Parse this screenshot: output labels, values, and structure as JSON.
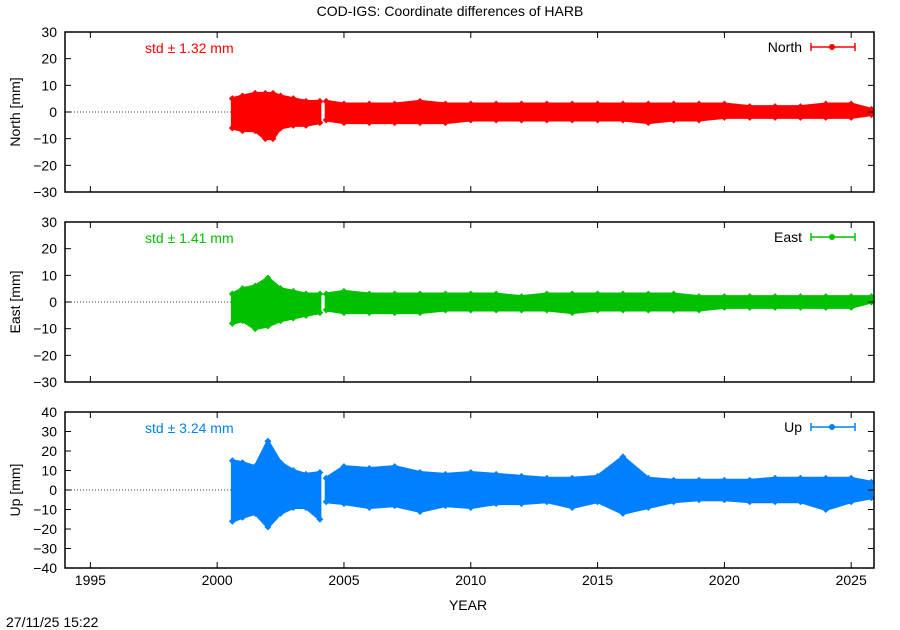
{
  "chart_data": {
    "type": "scatter",
    "title": "COD-IGS: Coordinate differences of HARB",
    "xlabel": "YEAR",
    "xlim": [
      1994.0,
      2025.9
    ],
    "xticks": [
      1995,
      2000,
      2005,
      2010,
      2015,
      2020,
      2025
    ],
    "timestamp": "27/11/25 15:22",
    "grid": false,
    "legend_placement": "top-right",
    "panels": [
      {
        "name": "North",
        "ylabel": "North [mm]",
        "ylim": [
          -30,
          30
        ],
        "yticks": [
          -30,
          -20,
          -10,
          0,
          10,
          20,
          30
        ],
        "color": "#ff0000",
        "std_label": "std ± 1.32 mm",
        "envelope_note_columns": [
          "year",
          "min_mm",
          "max_mm"
        ],
        "segments": [
          [
            [
              2000.6,
              -6,
              5
            ],
            [
              2001.0,
              -7,
              6
            ],
            [
              2001.5,
              -7,
              7
            ],
            [
              2001.9,
              -10,
              7
            ],
            [
              2002.2,
              -10,
              7
            ],
            [
              2002.5,
              -6,
              6
            ],
            [
              2003.0,
              -5,
              5
            ],
            [
              2003.5,
              -5,
              4
            ],
            [
              2004.05,
              -4,
              4
            ]
          ],
          [
            [
              2004.3,
              -3,
              4
            ],
            [
              2005,
              -4,
              3
            ],
            [
              2006,
              -4,
              3
            ],
            [
              2007,
              -4,
              3
            ],
            [
              2008,
              -4,
              4
            ],
            [
              2009,
              -4,
              3
            ],
            [
              2010,
              -3,
              3
            ],
            [
              2011,
              -3,
              3
            ],
            [
              2012,
              -3,
              3
            ],
            [
              2013,
              -3,
              3
            ],
            [
              2014,
              -3,
              3
            ],
            [
              2015,
              -3,
              3
            ],
            [
              2016,
              -3,
              3
            ],
            [
              2017,
              -4,
              3
            ],
            [
              2018,
              -3,
              3
            ],
            [
              2019,
              -3,
              3
            ],
            [
              2020,
              -2,
              3
            ],
            [
              2021,
              -2,
              2
            ],
            [
              2022,
              -2,
              2
            ],
            [
              2023,
              -2,
              2
            ],
            [
              2024,
              -2,
              3
            ],
            [
              2025,
              -2,
              3
            ],
            [
              2025.8,
              -1,
              1
            ]
          ]
        ]
      },
      {
        "name": "East",
        "ylabel": "East [mm]",
        "ylim": [
          -30,
          30
        ],
        "yticks": [
          -30,
          -20,
          -10,
          0,
          10,
          20,
          30
        ],
        "color": "#00c000",
        "std_label": "std ± 1.41 mm",
        "segments": [
          [
            [
              2000.6,
              -8,
              3
            ],
            [
              2001.0,
              -7,
              5
            ],
            [
              2001.5,
              -10,
              6
            ],
            [
              2002.0,
              -9,
              9
            ],
            [
              2002.5,
              -7,
              5
            ],
            [
              2003.0,
              -6,
              4
            ],
            [
              2003.5,
              -5,
              3
            ],
            [
              2004.05,
              -4,
              3
            ]
          ],
          [
            [
              2004.3,
              -3,
              3
            ],
            [
              2005,
              -4,
              4
            ],
            [
              2006,
              -4,
              3
            ],
            [
              2007,
              -4,
              3
            ],
            [
              2008,
              -4,
              3
            ],
            [
              2009,
              -3,
              3
            ],
            [
              2010,
              -3,
              3
            ],
            [
              2011,
              -3,
              3
            ],
            [
              2012,
              -3,
              2
            ],
            [
              2013,
              -3,
              3
            ],
            [
              2014,
              -4,
              3
            ],
            [
              2015,
              -3,
              3
            ],
            [
              2016,
              -3,
              3
            ],
            [
              2017,
              -3,
              3
            ],
            [
              2018,
              -3,
              3
            ],
            [
              2019,
              -3,
              2
            ],
            [
              2020,
              -2,
              2
            ],
            [
              2021,
              -2,
              2
            ],
            [
              2022,
              -2,
              2
            ],
            [
              2023,
              -2,
              2
            ],
            [
              2024,
              -2,
              2
            ],
            [
              2025,
              -2,
              2
            ],
            [
              2025.8,
              0,
              2
            ]
          ]
        ]
      },
      {
        "name": "Up",
        "ylabel": "Up [mm]",
        "ylim": [
          -40,
          40
        ],
        "yticks": [
          -40,
          -30,
          -20,
          -10,
          0,
          10,
          20,
          30,
          40
        ],
        "color": "#0080ff",
        "std_label": "std ± 3.24 mm",
        "segments": [
          [
            [
              2000.6,
              -16,
              15
            ],
            [
              2001.0,
              -14,
              14
            ],
            [
              2001.5,
              -12,
              12
            ],
            [
              2002.0,
              -19,
              25
            ],
            [
              2002.5,
              -12,
              14
            ],
            [
              2003.0,
              -9,
              10
            ],
            [
              2003.5,
              -9,
              8
            ],
            [
              2004.05,
              -15,
              9
            ]
          ],
          [
            [
              2004.3,
              -6,
              6
            ],
            [
              2005,
              -7,
              12
            ],
            [
              2006,
              -9,
              11
            ],
            [
              2007,
              -8,
              12
            ],
            [
              2008,
              -11,
              9
            ],
            [
              2009,
              -8,
              8
            ],
            [
              2010,
              -9,
              9
            ],
            [
              2011,
              -7,
              8
            ],
            [
              2012,
              -7,
              7
            ],
            [
              2013,
              -6,
              6
            ],
            [
              2014,
              -9,
              6
            ],
            [
              2015,
              -6,
              7
            ],
            [
              2016,
              -12,
              17
            ],
            [
              2017,
              -9,
              6
            ],
            [
              2018,
              -6,
              5
            ],
            [
              2019,
              -5,
              5
            ],
            [
              2020,
              -5,
              5
            ],
            [
              2021,
              -6,
              5
            ],
            [
              2022,
              -6,
              6
            ],
            [
              2023,
              -6,
              6
            ],
            [
              2024,
              -10,
              6
            ],
            [
              2025,
              -6,
              6
            ],
            [
              2025.8,
              -4,
              4
            ]
          ]
        ]
      }
    ]
  }
}
